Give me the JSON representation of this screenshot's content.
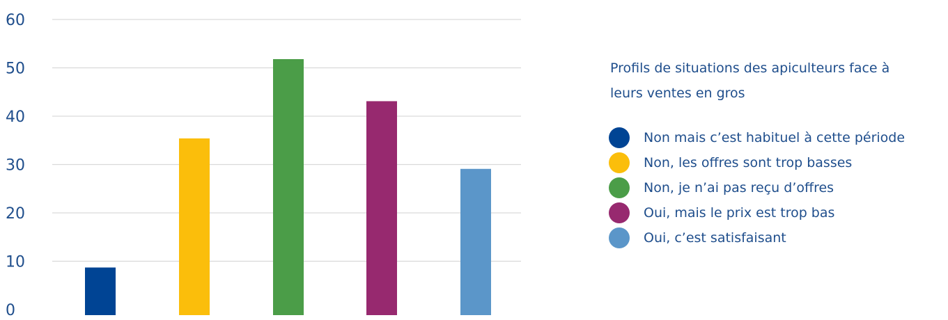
{
  "chart_data": {
    "type": "bar",
    "title": "Profils de situations des apiculteurs face à leurs ventes en gros",
    "xlabel": "",
    "ylabel": "",
    "ylim": [
      0,
      60
    ],
    "yticks": [
      "0",
      "10",
      "20",
      "30",
      "40",
      "50",
      "60"
    ],
    "grid": true,
    "legend_placement": "right",
    "categories": [
      "Non mais c’est habituel à cette période",
      "Non, les offres sont trop basses",
      "Non, je n’ai pas reçu d’offres",
      "Oui, mais le prix est trop bas",
      "Oui, c’est satisfaisant"
    ],
    "values": [
      8.7,
      35.4,
      51.8,
      43.1,
      29.1
    ],
    "colors": [
      "#004494",
      "#fbbe0b",
      "#4b9d48",
      "#97296f",
      "#5b96c9"
    ]
  },
  "legend": {
    "title": "Profils de situations des apiculteurs face à leurs ventes en gros",
    "items": [
      "Non mais c’est habituel à cette période",
      "Non, les offres sont trop basses",
      "Non, je n’ai pas reçu d’offres",
      "Oui, mais le prix est trop bas",
      "Oui, c’est satisfaisant"
    ]
  }
}
